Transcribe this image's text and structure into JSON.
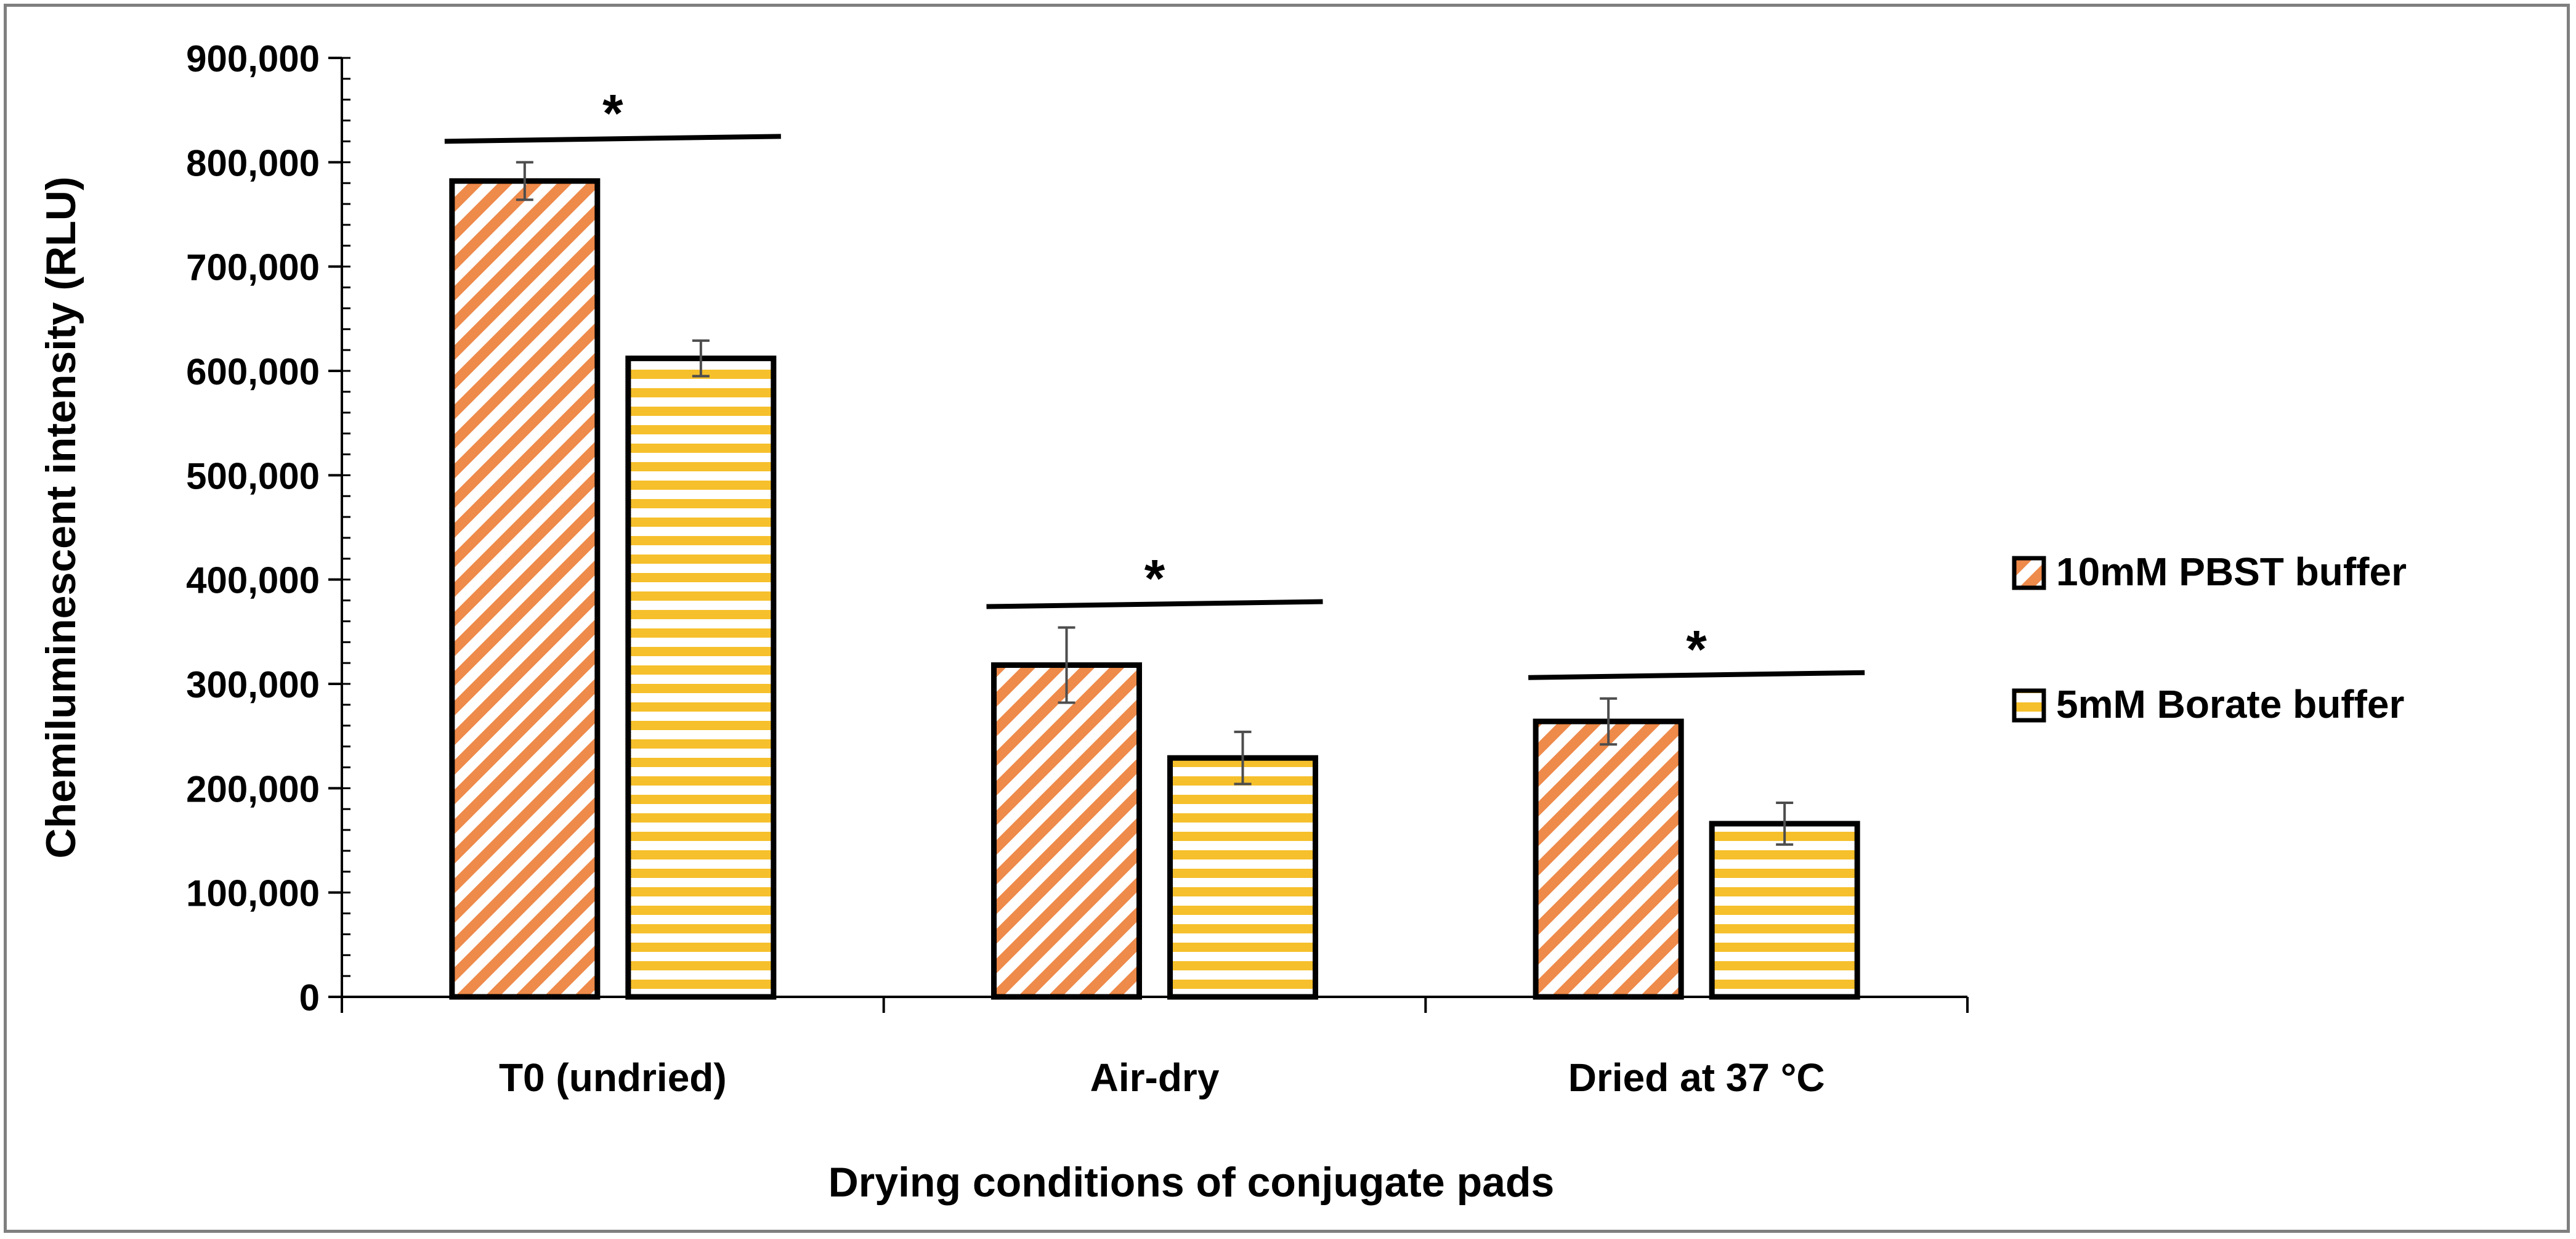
{
  "chart_data": {
    "type": "bar",
    "title": "",
    "xlabel": "Drying conditions of conjugate pads",
    "ylabel": "Chemiluminescent intensity (RLU)",
    "categories": [
      "T0 (undried)",
      "Air-dry",
      "Dried at 37 °C"
    ],
    "ylim": [
      0,
      900000
    ],
    "ytick_step": 100000,
    "minor_tick_step": 20000,
    "ytick_labels": [
      "0",
      "100,000",
      "200,000",
      "300,000",
      "400,000",
      "500,000",
      "600,000",
      "700,000",
      "800,000",
      "900,000"
    ],
    "series": [
      {
        "name": "10mM PBST buffer",
        "pattern": "diagonal-stripes",
        "values": [
          782000,
          318000,
          264000
        ],
        "errors": [
          18000,
          36000,
          22000
        ]
      },
      {
        "name": "5mM Borate buffer",
        "pattern": "horizontal-stripes",
        "values": [
          612000,
          229000,
          166000
        ],
        "errors": [
          17000,
          25000,
          20000
        ]
      }
    ],
    "significance": [
      {
        "category": "T0 (undried)",
        "label": "*"
      },
      {
        "category": "Air-dry",
        "label": "*"
      },
      {
        "category": "Dried at 37 °C",
        "label": "*"
      }
    ],
    "legend_position": "right",
    "grid": false
  },
  "colors": {
    "stripe_orange": "#ee8a4a",
    "stripe_yellow": "#f6c02c",
    "bar_outline": "#000000",
    "frame": "#7f7f7f",
    "error_bar": "#4d4d4d"
  }
}
